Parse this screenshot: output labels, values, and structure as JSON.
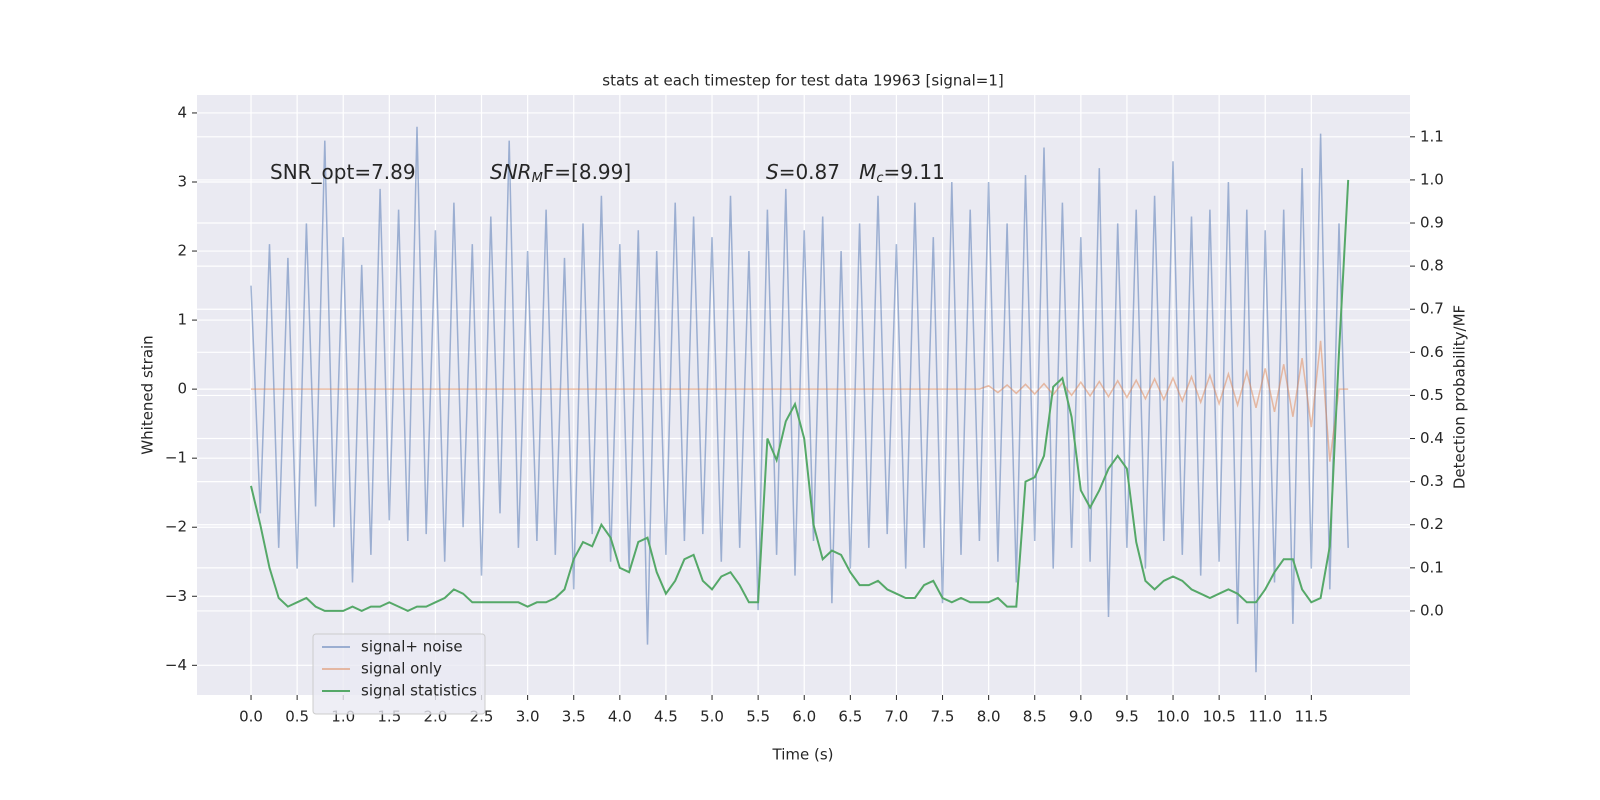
{
  "chart_data": {
    "type": "line",
    "title": "stats at each timestep for test data 19963 [signal=1]",
    "xlabel": "Time (s)",
    "ylabel": "Whitened strain",
    "y2label": "Detection probability/MF",
    "annotations": [
      [
        {
          "t": "SNR_opt=7.89",
          "style": "normal"
        }
      ],
      [
        {
          "t": "SNR",
          "style": "italic"
        },
        {
          "t": "M",
          "style": "sub"
        },
        {
          "t": "F=[8.99]",
          "style": "normal"
        }
      ],
      [
        {
          "t": "S",
          "style": "italic"
        },
        {
          "t": "=0.87   ",
          "style": "normal"
        },
        {
          "t": "M",
          "style": "italic"
        },
        {
          "t": "c",
          "style": "sub"
        },
        {
          "t": "=9.11",
          "style": "normal"
        }
      ]
    ],
    "x": [
      0.0,
      0.1,
      0.2,
      0.3,
      0.4,
      0.5,
      0.6,
      0.7,
      0.8,
      0.9,
      1.0,
      1.1,
      1.2,
      1.3,
      1.4,
      1.5,
      1.6,
      1.7,
      1.8,
      1.9,
      2.0,
      2.1,
      2.2,
      2.3,
      2.4,
      2.5,
      2.6,
      2.7,
      2.8,
      2.9,
      3.0,
      3.1,
      3.2,
      3.3,
      3.4,
      3.5,
      3.6,
      3.7,
      3.8,
      3.9,
      4.0,
      4.1,
      4.2,
      4.3,
      4.4,
      4.5,
      4.6,
      4.7,
      4.8,
      4.9,
      5.0,
      5.1,
      5.2,
      5.3,
      5.4,
      5.5,
      5.6,
      5.7,
      5.8,
      5.9,
      6.0,
      6.1,
      6.2,
      6.3,
      6.4,
      6.5,
      6.6,
      6.7,
      6.8,
      6.9,
      7.0,
      7.1,
      7.2,
      7.3,
      7.4,
      7.5,
      7.6,
      7.7,
      7.8,
      7.9,
      8.0,
      8.1,
      8.2,
      8.3,
      8.4,
      8.5,
      8.6,
      8.7,
      8.8,
      8.9,
      9.0,
      9.1,
      9.2,
      9.3,
      9.4,
      9.5,
      9.6,
      9.7,
      9.8,
      9.9,
      10.0,
      10.1,
      10.2,
      10.3,
      10.4,
      10.5,
      10.6,
      10.7,
      10.8,
      10.9,
      11.0,
      11.1,
      11.2,
      11.3,
      11.4,
      11.5,
      11.6,
      11.7,
      11.8,
      11.9
    ],
    "series": [
      {
        "name": "signal+ noise",
        "color": "#4c72b0",
        "opacity": 0.5,
        "values": [
          1.5,
          -1.8,
          2.1,
          -2.3,
          1.9,
          -2.6,
          2.4,
          -1.7,
          3.6,
          -2.0,
          2.2,
          -2.8,
          1.8,
          -2.4,
          2.9,
          -1.9,
          2.6,
          -2.2,
          3.8,
          -2.1,
          2.3,
          -2.5,
          2.7,
          -2.0,
          2.1,
          -2.7,
          2.5,
          -1.8,
          3.6,
          -2.3,
          2.0,
          -2.2,
          2.6,
          -2.4,
          1.9,
          -2.9,
          2.4,
          -2.1,
          2.8,
          -2.5,
          2.1,
          -2.6,
          2.3,
          -3.7,
          2.0,
          -2.4,
          2.7,
          -2.2,
          2.5,
          -2.1,
          2.2,
          -2.5,
          2.8,
          -2.3,
          2.0,
          -3.2,
          2.6,
          -2.4,
          2.9,
          -2.7,
          2.3,
          -2.2,
          2.5,
          -3.1,
          2.0,
          -2.6,
          2.4,
          -2.3,
          2.8,
          -2.1,
          2.1,
          -2.6,
          2.7,
          -2.3,
          2.2,
          -3.1,
          3.0,
          -2.4,
          2.6,
          -2.2,
          3.0,
          -2.5,
          2.4,
          -2.8,
          3.1,
          -2.2,
          3.5,
          -2.6,
          2.7,
          -2.3,
          2.2,
          -2.5,
          3.2,
          -3.3,
          2.4,
          -2.3,
          2.6,
          -2.6,
          2.8,
          -2.2,
          3.3,
          -2.4,
          2.5,
          -2.7,
          2.6,
          -2.5,
          3.0,
          -3.4,
          2.6,
          -4.1,
          2.3,
          -2.8,
          2.6,
          -3.4,
          3.2,
          -2.6,
          3.7,
          -2.9,
          2.4,
          -2.3
        ]
      },
      {
        "name": "signal only",
        "color": "#dd8452",
        "opacity": 0.5,
        "values": [
          0,
          0,
          0,
          0,
          0,
          0,
          0,
          0,
          0,
          0,
          0,
          0,
          0,
          0,
          0,
          0,
          0,
          0,
          0,
          0,
          0,
          0,
          0,
          0,
          0,
          0,
          0,
          0,
          0,
          0,
          0,
          0,
          0,
          0,
          0,
          0,
          0,
          0,
          0,
          0,
          0,
          0,
          0,
          0,
          0,
          0,
          0,
          0,
          0,
          0,
          0,
          0,
          0,
          0,
          0,
          0,
          0,
          0,
          0,
          0,
          0,
          0,
          0,
          0,
          0,
          0,
          0,
          0,
          0,
          0,
          0,
          0,
          0,
          0,
          0,
          0,
          0,
          0,
          0,
          0,
          0.05,
          -0.05,
          0.06,
          -0.06,
          0.07,
          -0.07,
          0.08,
          -0.08,
          0.09,
          -0.09,
          0.1,
          -0.1,
          0.11,
          -0.11,
          0.12,
          -0.12,
          0.13,
          -0.14,
          0.15,
          -0.15,
          0.16,
          -0.17,
          0.18,
          -0.19,
          0.2,
          -0.21,
          0.22,
          -0.23,
          0.25,
          -0.27,
          0.3,
          -0.33,
          0.36,
          -0.4,
          0.45,
          -0.55,
          0.7,
          -1.05,
          0,
          0
        ]
      },
      {
        "name": "signal statistics",
        "color": "#55a868",
        "opacity": 1,
        "axis": "y2",
        "values": [
          0.29,
          0.2,
          0.1,
          0.03,
          0.01,
          0.02,
          0.03,
          0.01,
          0.0,
          0.0,
          0.0,
          0.01,
          0.0,
          0.01,
          0.01,
          0.02,
          0.01,
          0.0,
          0.01,
          0.01,
          0.02,
          0.03,
          0.05,
          0.04,
          0.02,
          0.02,
          0.02,
          0.02,
          0.02,
          0.02,
          0.01,
          0.02,
          0.02,
          0.03,
          0.05,
          0.12,
          0.16,
          0.15,
          0.2,
          0.17,
          0.1,
          0.09,
          0.16,
          0.17,
          0.09,
          0.04,
          0.07,
          0.12,
          0.13,
          0.07,
          0.05,
          0.08,
          0.09,
          0.06,
          0.02,
          0.02,
          0.4,
          0.35,
          0.44,
          0.48,
          0.4,
          0.2,
          0.12,
          0.14,
          0.13,
          0.09,
          0.06,
          0.06,
          0.07,
          0.05,
          0.04,
          0.03,
          0.03,
          0.06,
          0.07,
          0.03,
          0.02,
          0.03,
          0.02,
          0.02,
          0.02,
          0.03,
          0.01,
          0.01,
          0.3,
          0.31,
          0.36,
          0.52,
          0.54,
          0.45,
          0.28,
          0.24,
          0.28,
          0.33,
          0.36,
          0.33,
          0.16,
          0.07,
          0.05,
          0.07,
          0.08,
          0.07,
          0.05,
          0.04,
          0.03,
          0.04,
          0.05,
          0.04,
          0.02,
          0.02,
          0.05,
          0.09,
          0.12,
          0.12,
          0.05,
          0.02,
          0.03,
          0.15,
          0.6,
          1.0
        ]
      }
    ],
    "xlim": [
      -0.586,
      12.57
    ],
    "ylim": [
      -4.43,
      4.26
    ],
    "y2lim": [
      -0.195,
      1.197
    ],
    "xticks": [
      {
        "value": 0,
        "label": "0.0"
      },
      0.5,
      {
        "value": 1,
        "label": "1.0"
      },
      1.5,
      {
        "value": 2,
        "label": "2.0"
      },
      2.5,
      {
        "value": 3,
        "label": "3.0"
      },
      3.5,
      {
        "value": 4,
        "label": "4.0"
      },
      4.5,
      {
        "value": 5,
        "label": "5.0"
      },
      5.5,
      {
        "value": 6,
        "label": "6.0"
      },
      6.5,
      {
        "value": 7,
        "label": "7.0"
      },
      7.5,
      {
        "value": 8,
        "label": "8.0"
      },
      8.5,
      {
        "value": 9,
        "label": "9.0"
      },
      9.5,
      {
        "value": 10,
        "label": "10.0"
      },
      10.5,
      {
        "value": 11,
        "label": "11.0"
      },
      11.5
    ],
    "yticks": [
      {
        "value": -4,
        "label": "−4"
      },
      {
        "value": -3,
        "label": "−3"
      },
      {
        "value": -2,
        "label": "−2"
      },
      {
        "value": -1,
        "label": "−1"
      },
      0,
      1,
      2,
      3,
      4
    ],
    "y2ticks": [
      {
        "value": 0,
        "label": "0.0"
      },
      0.1,
      0.2,
      0.3,
      0.4,
      0.5,
      0.6,
      0.7,
      0.8,
      0.9,
      {
        "value": 1,
        "label": "1.0"
      },
      1.1
    ],
    "grid": true,
    "legend": "lower left",
    "background": "#eaeaf2"
  }
}
